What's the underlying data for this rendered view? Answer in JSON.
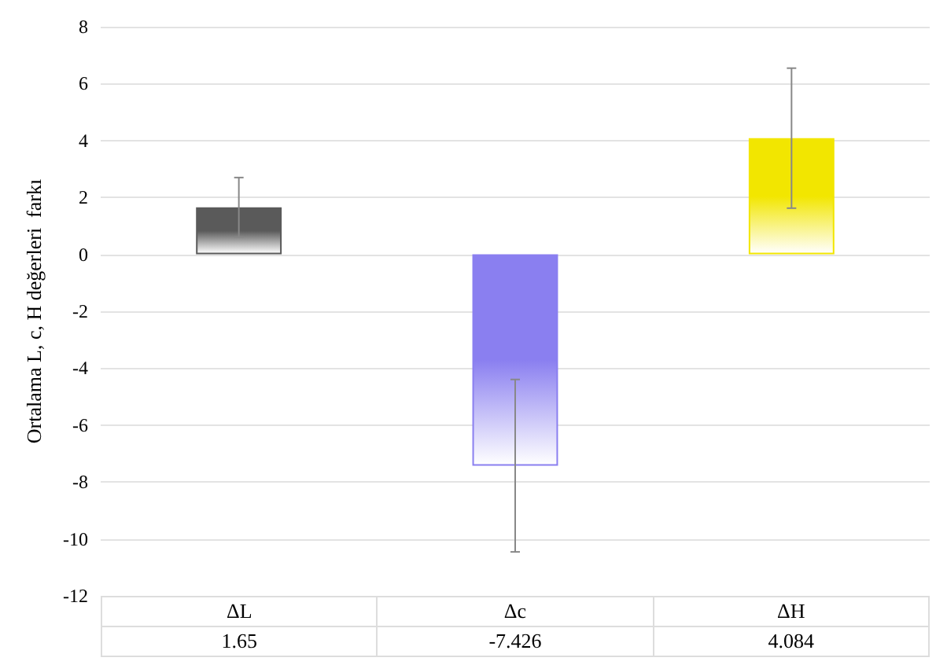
{
  "chart_data": {
    "type": "bar",
    "ylabel": "Ortalama L, c, H değerleri  farkı",
    "categories": [
      "ΔL",
      "Δc",
      "ΔH"
    ],
    "values": [
      1.65,
      -7.426,
      4.084
    ],
    "colors": [
      "#5a5a5a",
      "#8a7ff0",
      "#f2e600"
    ],
    "errors": [
      1.05,
      3.03,
      2.46
    ],
    "ylim": [
      -12,
      8
    ],
    "yticks": [
      -12,
      -10,
      -8,
      -6,
      -4,
      -2,
      0,
      2,
      4,
      6,
      8
    ],
    "grid": "y",
    "data_labels": true
  }
}
